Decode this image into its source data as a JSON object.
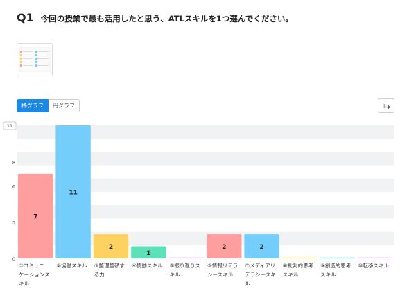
{
  "question": {
    "number": "Q1",
    "text": "今回の授業で最も活用したと思う、ATLスキルを1つ選んでください。"
  },
  "view_toggle": {
    "bar_label": "棒グラフ",
    "pie_label": "円グラフ"
  },
  "colors": {
    "accent": "#1e88e5"
  },
  "chart_data": {
    "type": "bar",
    "categories": [
      "①コミュニケーションスキル",
      "②協働スキル",
      "③整理整頓する力",
      "④情動スキル",
      "⑤振り返りスキル",
      "⑥情報リテラシースキル",
      "⑦メディアリテラシースキル",
      "⑧批判的思考スキル",
      "⑨創造的思考スキル",
      "⑩転移スキル"
    ],
    "category_lines": [
      [
        "①コミュニ",
        "ケーションス",
        "キル"
      ],
      [
        "②協働スキル"
      ],
      [
        "③整理整頓す",
        "る力"
      ],
      [
        "④情動スキル"
      ],
      [
        "⑤振り返りス",
        "キル"
      ],
      [
        "⑥情報リテラ",
        "シースキル"
      ],
      [
        "⑦メディアリ",
        "テラシースキ",
        "ル"
      ],
      [
        "⑧批判的思考",
        "スキル"
      ],
      [
        "⑨創造的思考",
        "スキル"
      ],
      [
        "⑩転移スキル"
      ]
    ],
    "values": [
      7,
      11,
      2,
      1,
      0,
      2,
      2,
      0,
      0,
      0
    ],
    "value_labels": [
      "7",
      "11",
      "2",
      "1",
      "",
      "2",
      "2",
      "",
      "",
      ""
    ],
    "colors": [
      "#ff9e9e",
      "#74cdfb",
      "#fdd260",
      "#5ce1b8",
      "#d7a7e0",
      "#ff9e9e",
      "#74cdfb",
      "#fdd260",
      "#5ce1b8",
      "#d7a7e0"
    ],
    "y_ticks": [
      "0",
      "3",
      "6",
      "8",
      "11"
    ],
    "y_tick_values": [
      0,
      3,
      6,
      8,
      11
    ],
    "ylim": [
      0,
      11
    ],
    "max_label": "11"
  }
}
